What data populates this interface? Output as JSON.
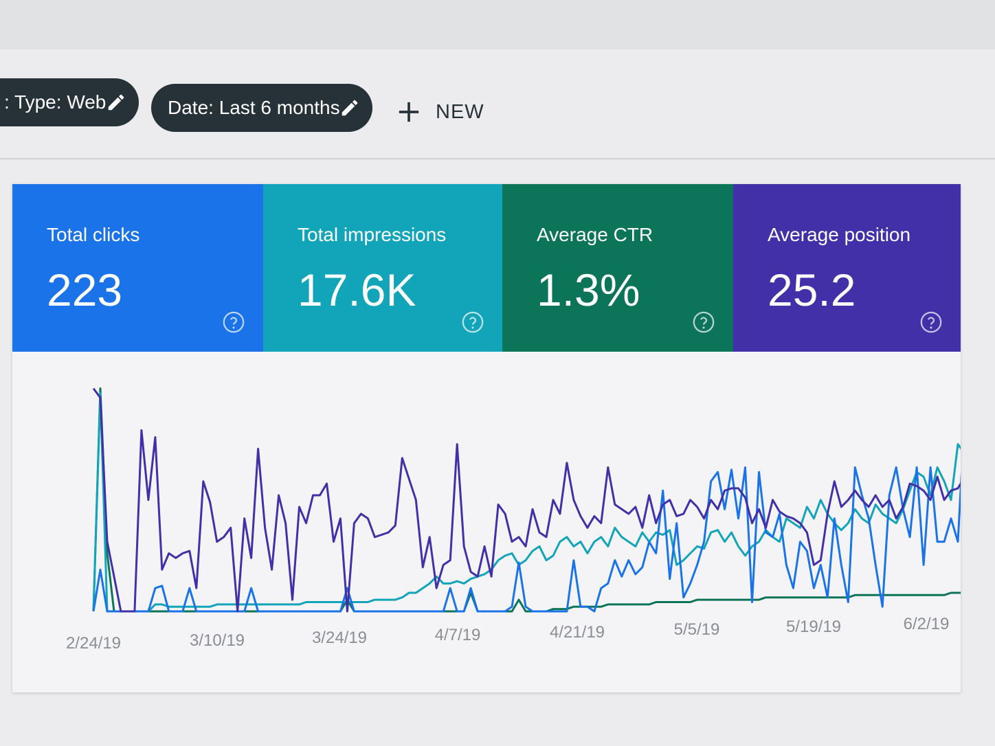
{
  "filters": {
    "type_chip": {
      "label": ": Type: Web",
      "icon": "pencil-icon"
    },
    "date_chip": {
      "label": "Date: Last 6 months",
      "icon": "pencil-icon"
    },
    "new_button": {
      "label": "NEW",
      "icon": "plus-icon"
    }
  },
  "metrics": [
    {
      "label": "Total clicks",
      "value": "223",
      "color": "#1a73e8",
      "icon": "help-circle-icon"
    },
    {
      "label": "Total impressions",
      "value": "17.6K",
      "color": "#12a4b8",
      "icon": "help-circle-icon"
    },
    {
      "label": "Average CTR",
      "value": "1.3%",
      "color": "#0b7459",
      "icon": "help-circle-icon"
    },
    {
      "label": "Average position",
      "value": "25.2",
      "color": "#4130a8",
      "icon": "help-circle-icon"
    }
  ],
  "chart_data": {
    "type": "line",
    "x_tick_labels": [
      "2/24/19",
      "3/10/19",
      "3/24/19",
      "4/7/19",
      "4/21/19",
      "5/5/19",
      "5/19/19",
      "6/2/19"
    ],
    "grid": false,
    "legend": "none",
    "series": [
      {
        "color": "#4130a8",
        "values": [
          96,
          92,
          30,
          15,
          0,
          0,
          0,
          78,
          48,
          75,
          18,
          25,
          23,
          25,
          26,
          10,
          56,
          47,
          30,
          32,
          36,
          0,
          40,
          23,
          70,
          36,
          18,
          50,
          38,
          5,
          45,
          38,
          50,
          50,
          55,
          30,
          40,
          0,
          38,
          42,
          40,
          32,
          33,
          34,
          37,
          66,
          57,
          48,
          19,
          32,
          10,
          20,
          22,
          72,
          28,
          17,
          15,
          28,
          15,
          46,
          42,
          30,
          32,
          28,
          44,
          34,
          32,
          48,
          42,
          64,
          48,
          41,
          36,
          41,
          38,
          62,
          46,
          44,
          42,
          45,
          36,
          50,
          38,
          46,
          48,
          41,
          42,
          48,
          45,
          40,
          48,
          44,
          52,
          53,
          53,
          49,
          38,
          44,
          36,
          48,
          43,
          41,
          40,
          38,
          34,
          20,
          22,
          42,
          56,
          45,
          48,
          52,
          48,
          45,
          50,
          45,
          48,
          40,
          45,
          55,
          54,
          52,
          48,
          58,
          48,
          52,
          53,
          58,
          55
        ]
      },
      {
        "color": "#1a73e8",
        "values": [
          0,
          18,
          0,
          0,
          0,
          0,
          0,
          0,
          0,
          10,
          11,
          0,
          0,
          0,
          10,
          0,
          0,
          0,
          0,
          0,
          0,
          0,
          0,
          10,
          0,
          0,
          0,
          0,
          0,
          0,
          0,
          0,
          0,
          0,
          0,
          0,
          0,
          10,
          0,
          0,
          0,
          0,
          0,
          0,
          0,
          0,
          0,
          0,
          0,
          0,
          0,
          0,
          10,
          0,
          0,
          10,
          0,
          0,
          0,
          0,
          0,
          2,
          21,
          2,
          0,
          0,
          0,
          0,
          0,
          0,
          22,
          2,
          2,
          0,
          10,
          12,
          22,
          15,
          22,
          16,
          19,
          30,
          25,
          52,
          14,
          38,
          6,
          12,
          20,
          30,
          56,
          60,
          44,
          61,
          40,
          62,
          4,
          60,
          34,
          32,
          42,
          20,
          10,
          30,
          26,
          10,
          20,
          6,
          40,
          20,
          4,
          62,
          50,
          40,
          20,
          2,
          50,
          62,
          44,
          32,
          62,
          20,
          62,
          30,
          30,
          40,
          30,
          85,
          68,
          85
        ]
      },
      {
        "color": "#12a4b8",
        "values": [
          0,
          94,
          0,
          0,
          0,
          0,
          0,
          0,
          0,
          3,
          3,
          2,
          2,
          2,
          2,
          2,
          2,
          2,
          3,
          3,
          3,
          3,
          3,
          3,
          3,
          3,
          3,
          3,
          3,
          3,
          3,
          4,
          4,
          4,
          4,
          4,
          4,
          4,
          4,
          4,
          4,
          5,
          5,
          5,
          5,
          6,
          8,
          8,
          10,
          12,
          15,
          12,
          12,
          13,
          12,
          14,
          15,
          16,
          18,
          22,
          24,
          25,
          20,
          22,
          26,
          28,
          22,
          24,
          30,
          32,
          28,
          30,
          25,
          30,
          32,
          28,
          36,
          32,
          30,
          28,
          34,
          30,
          34,
          33,
          35,
          20,
          22,
          25,
          28,
          27,
          34,
          35,
          30,
          34,
          28,
          24,
          28,
          30,
          35,
          32,
          30,
          40,
          38,
          36,
          45,
          40,
          48,
          42,
          38,
          35,
          38,
          44,
          40,
          38,
          46,
          42,
          40,
          38,
          44,
          52,
          60,
          58,
          50,
          62,
          56,
          48,
          72,
          68,
          62
        ]
      },
      {
        "color": "#0b7459",
        "values": [
          0,
          96,
          25,
          0,
          0,
          0,
          0,
          0,
          0,
          0,
          0,
          0,
          0,
          0,
          0,
          0,
          0,
          0,
          0,
          0,
          0,
          0,
          0,
          0,
          0,
          0,
          0,
          0,
          0,
          0,
          0,
          0,
          0,
          0,
          0,
          0,
          0,
          5,
          0,
          0,
          0,
          0,
          0,
          0,
          0,
          0,
          0,
          0,
          0,
          0,
          0,
          0,
          0,
          0,
          0,
          8,
          0,
          0,
          0,
          0,
          0,
          0,
          5,
          0,
          0,
          0,
          0,
          1,
          1,
          1,
          2,
          2,
          2,
          2,
          2,
          3,
          3,
          3,
          3,
          3,
          3,
          3,
          4,
          4,
          4,
          4,
          4,
          4,
          5,
          5,
          5,
          5,
          5,
          5,
          5,
          5,
          5,
          5,
          6,
          6,
          6,
          6,
          6,
          6,
          6,
          6,
          6,
          6,
          6,
          6,
          6,
          7,
          7,
          7,
          7,
          7,
          7,
          7,
          7,
          7,
          7,
          7,
          7,
          7,
          7,
          8,
          8,
          8,
          8
        ]
      }
    ]
  }
}
